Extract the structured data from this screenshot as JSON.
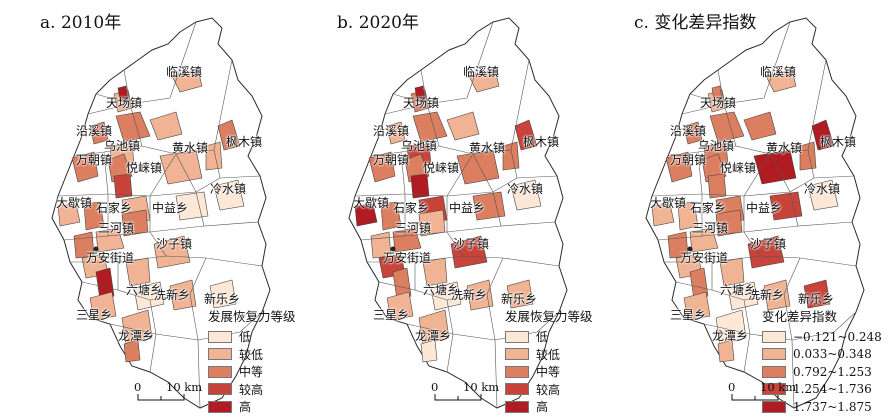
{
  "colors": {
    "c1": "#fde7d6",
    "c2": "#f0b393",
    "c3": "#dc7f61",
    "c4": "#c8443a",
    "c5": "#b01c22",
    "boundary": "#2b2b2b"
  },
  "panels": [
    {
      "title": "a. 2010年",
      "legend_title": "发展恢复力等级",
      "legend": [
        {
          "label": "低",
          "color": "#fde7d6"
        },
        {
          "label": "较低",
          "color": "#f0b393"
        },
        {
          "label": "中等",
          "color": "#dc7f61"
        },
        {
          "label": "较高",
          "color": "#c8443a"
        },
        {
          "label": "高",
          "color": "#b01c22"
        }
      ]
    },
    {
      "title": "b. 2020年",
      "legend_title": "发展恢复力等级",
      "legend": [
        {
          "label": "低",
          "color": "#fde7d6"
        },
        {
          "label": "较低",
          "color": "#f0b393"
        },
        {
          "label": "中等",
          "color": "#dc7f61"
        },
        {
          "label": "较高",
          "color": "#c8443a"
        },
        {
          "label": "高",
          "color": "#b01c22"
        }
      ]
    },
    {
      "title": "c. 变化差异指数",
      "legend_title": "变化差异指数",
      "legend": [
        {
          "label": "−0.121~0.248",
          "color": "#fde7d6"
        },
        {
          "label": "0.033~0.348",
          "color": "#f0b393"
        },
        {
          "label": "0.792~1.253",
          "color": "#dc7f61"
        },
        {
          "label": "1.254~1.736",
          "color": "#c8443a"
        },
        {
          "label": "1.737~1.875",
          "color": "#b01c22"
        }
      ]
    }
  ],
  "place_labels": [
    "临溪镇",
    "天场镇",
    "沿溪镇",
    "乌池镇",
    "黄水镇",
    "枫木镇",
    "万朝镇",
    "悦崃镇",
    "冷水镇",
    "大歇镇",
    "石家乡",
    "中益乡",
    "三河镇",
    "沙子镇",
    "万安街道",
    "六塘乡",
    "洗新乡",
    "新乐乡",
    "三星乡",
    "龙潭乡"
  ],
  "scale_bar": {
    "zero": "0",
    "distance": "10 km"
  }
}
